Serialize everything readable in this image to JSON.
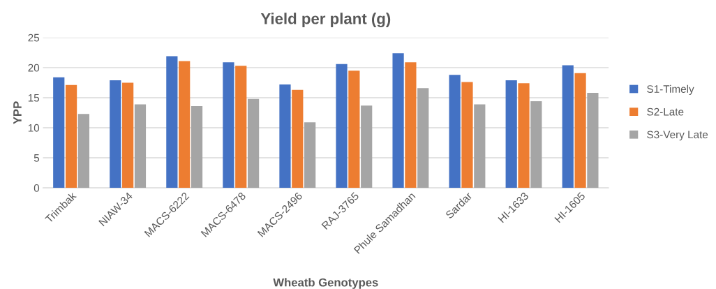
{
  "chart_data": {
    "type": "bar",
    "title": "Yield per plant (g)",
    "xlabel": "Wheatb Genotypes",
    "ylabel": "YPP",
    "categories": [
      "Trimbak",
      "NIAW-34",
      "MACS-6222",
      "MACS-6478",
      "MACS-2496",
      "RAJ-3765",
      "Phule Samadhan",
      "Sardar",
      "HI-1633",
      "HI-1605"
    ],
    "series": [
      {
        "name": "S1-Timely",
        "color": "#4472c4",
        "values": [
          18.4,
          17.9,
          21.9,
          20.9,
          17.2,
          20.6,
          22.4,
          18.8,
          17.9,
          20.4
        ]
      },
      {
        "name": "S2-Late",
        "color": "#ed7d31",
        "values": [
          17.1,
          17.5,
          21.1,
          20.3,
          16.3,
          19.5,
          20.9,
          17.6,
          17.4,
          19.1
        ]
      },
      {
        "name": "S3-Very Late",
        "color": "#a5a5a5",
        "values": [
          12.3,
          13.9,
          13.6,
          14.8,
          10.9,
          13.7,
          16.6,
          13.9,
          14.4,
          15.8
        ]
      }
    ],
    "ylim": [
      0,
      25
    ],
    "yticks": [
      0,
      5,
      10,
      15,
      20,
      25
    ],
    "grid": "y",
    "legend": "right"
  }
}
